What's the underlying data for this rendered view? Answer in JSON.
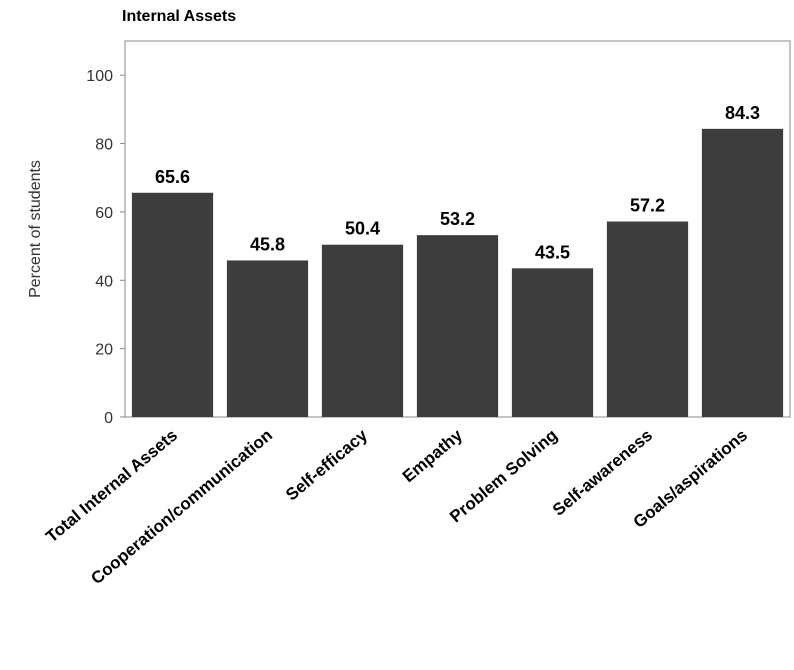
{
  "chart_data": {
    "type": "bar",
    "title": "Internal Assets",
    "xlabel": "",
    "ylabel": "Percent of students",
    "ylim": [
      0,
      110
    ],
    "yticks": [
      0,
      20,
      40,
      60,
      80,
      100
    ],
    "grid": false,
    "categories": [
      "Total Internal Assets",
      "Cooperation/communication",
      "Self-efficacy",
      "Empathy",
      "Problem Solving",
      "Self-awareness",
      "Goals/aspirations"
    ],
    "values": [
      65.6,
      45.8,
      50.4,
      53.2,
      43.5,
      57.2,
      84.3
    ],
    "value_labels": [
      "65.6",
      "45.8",
      "50.4",
      "53.2",
      "43.5",
      "57.2",
      "84.3"
    ],
    "colors": {
      "bar": "#3d3d3d",
      "frame": "#888888"
    }
  }
}
